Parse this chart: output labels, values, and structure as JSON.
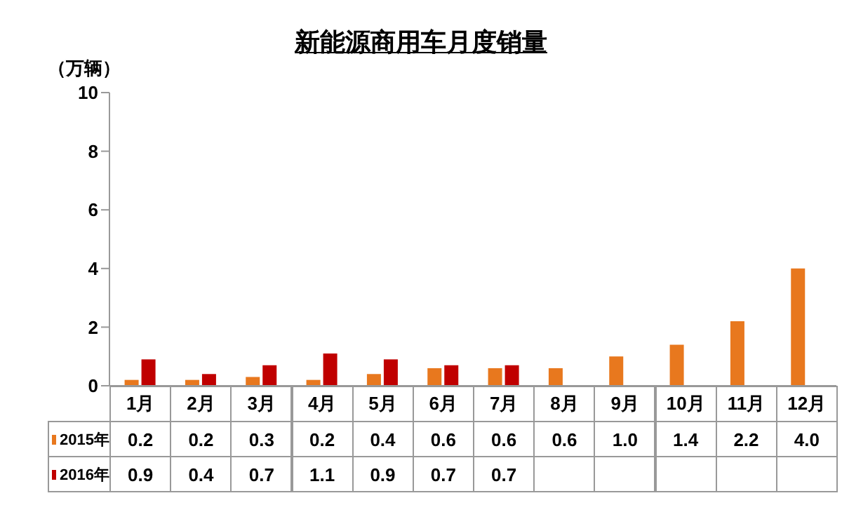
{
  "chart_data": {
    "type": "bar",
    "title": "新能源商用车月度销量",
    "ylabel": "（万辆）",
    "categories": [
      "1月",
      "2月",
      "3月",
      "4月",
      "5月",
      "6月",
      "7月",
      "8月",
      "9月",
      "10月",
      "11月",
      "12月"
    ],
    "series": [
      {
        "name": "2015年",
        "color": "#e8781e",
        "values": [
          0.2,
          0.2,
          0.3,
          0.2,
          0.4,
          0.6,
          0.6,
          0.6,
          1.0,
          1.4,
          2.2,
          4.0
        ],
        "value_labels": [
          "0.2",
          "0.2",
          "0.3",
          "0.2",
          "0.4",
          "0.6",
          "0.6",
          "0.6",
          "1.0",
          "1.4",
          "2.2",
          "4.0"
        ]
      },
      {
        "name": "2016年",
        "color": "#c00000",
        "values": [
          0.9,
          0.4,
          0.7,
          1.1,
          0.9,
          0.7,
          0.7,
          null,
          null,
          null,
          null,
          null
        ],
        "value_labels": [
          "0.9",
          "0.4",
          "0.7",
          "1.1",
          "0.9",
          "0.7",
          "0.7",
          null,
          null,
          null,
          null,
          null
        ]
      }
    ],
    "ylim": [
      0,
      10
    ],
    "yticks": [
      0,
      2,
      4,
      6,
      8,
      10
    ],
    "grid": false,
    "legend": "bottom"
  }
}
